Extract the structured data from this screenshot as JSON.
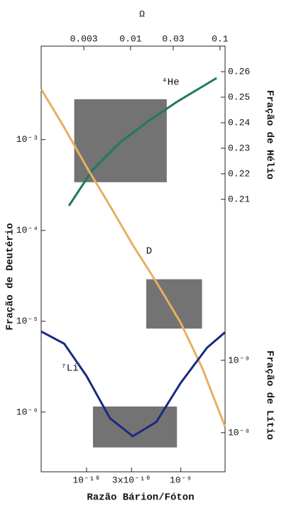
{
  "chart_data": {
    "type": "line",
    "xlabel": "Razão Bárion/Fóton",
    "x2label": "Ω",
    "ylabel": "Fração de Deutério",
    "y2label": "Fração de Hélio",
    "y3label": "Fração de Lítio",
    "xscale": "log",
    "xlim": [
      3.3e-11,
      2.95e-09
    ],
    "xticks": [
      {
        "value": 1e-10,
        "label": "10⁻¹⁰"
      },
      {
        "value": 3e-10,
        "label": "3x10⁻¹⁰"
      },
      {
        "value": 1e-09,
        "label": "10⁻⁹"
      }
    ],
    "x2lim": [
      0.001,
      0.114
    ],
    "x2ticks": [
      0.003,
      0.01,
      0.03,
      0.1
    ],
    "yscale": "log",
    "ylim": [
      2.2e-07,
      0.0107
    ],
    "yticks": [
      {
        "value": 0.001,
        "label": "10⁻³"
      },
      {
        "value": 0.0001,
        "label": "10⁻⁴"
      },
      {
        "value": 1e-05,
        "label": "10⁻⁵"
      },
      {
        "value": 1e-06,
        "label": "10⁻⁶"
      }
    ],
    "y2lim": [
      0.1033,
      0.27
    ],
    "y2ticks": [
      0.21,
      0.22,
      0.23,
      0.24,
      0.25,
      0.26
    ],
    "y3scale": "log",
    "y3lim": [
      3.47e-08,
      4.57e-14
    ],
    "y3ticks": [
      {
        "value": 1e-09,
        "label": "10⁻⁹"
      },
      {
        "value": 1e-08,
        "label": "10⁻⁸"
      }
    ],
    "boxes": [
      {
        "axis": "y2",
        "x": [
          7.4e-11,
          7.1e-10
        ],
        "y": [
          0.2167,
          0.2492
        ],
        "color": "#6b6b6b"
      },
      {
        "axis": "y",
        "x": [
          4.3e-10,
          1.68e-09
        ],
        "y": [
          8.3e-06,
          2.9e-05
        ],
        "color": "#6b6b6b"
      },
      {
        "axis": "y3",
        "x": [
          1.17e-10,
          9.1e-10
        ],
        "y": [
          4.35e-09,
          1.6e-08
        ],
        "color": "#6b6b6b"
      }
    ],
    "series": [
      {
        "name": "⁴He",
        "axis": "y2",
        "color": "#1f7a5c",
        "x": [
          6.5e-11,
          1.15e-10,
          2.3e-10,
          4.6e-10,
          9.2e-10,
          1.55e-09,
          2.4e-09
        ],
        "values": [
          0.2075,
          0.2214,
          0.2325,
          0.2408,
          0.2483,
          0.2533,
          0.2575
        ]
      },
      {
        "name": "D",
        "axis": "y",
        "color": "#e6b063",
        "x": [
          3.3e-11,
          5.8e-11,
          1e-10,
          1.77e-10,
          3.1e-10,
          5.5e-10,
          1e-09,
          1.7e-09,
          2.95e-09
        ],
        "values": [
          0.0036,
          0.00136,
          0.0005,
          0.000187,
          6.9e-05,
          2.7e-05,
          9.6e-06,
          3e-06,
          6.9e-07
        ]
      },
      {
        "name": "⁷Li",
        "axis": "y3",
        "color": "#1b2a80",
        "x": [
          3.3e-11,
          5.8e-11,
          1e-10,
          1.77e-10,
          3.1e-10,
          5.5e-10,
          1e-09,
          1.9e-09,
          2.95e-09
        ],
        "values": [
          4e-10,
          5.9e-10,
          1.65e-09,
          6.3e-09,
          1.12e-08,
          7.1e-09,
          2.05e-09,
          6.7e-10,
          4.1e-10
        ]
      }
    ]
  }
}
